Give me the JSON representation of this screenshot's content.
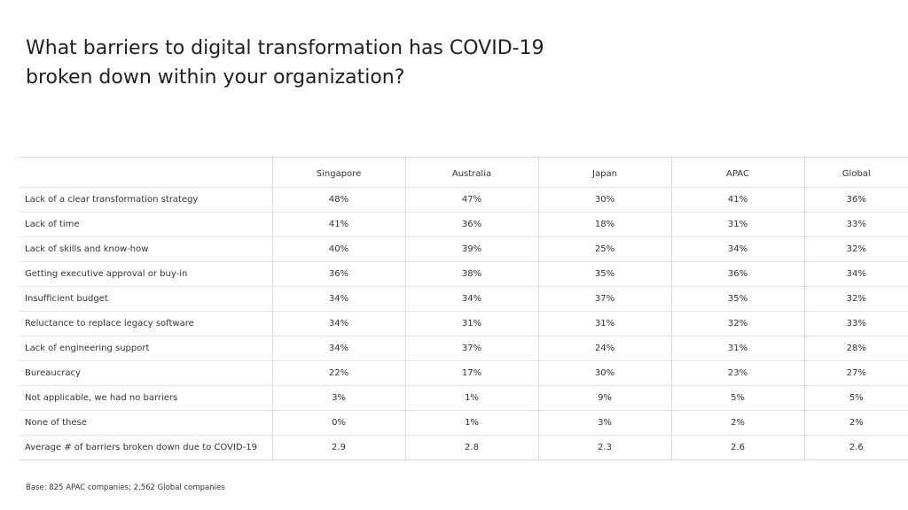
{
  "title": "What barriers to digital transformation has COVID-19 broken down within your organization?",
  "table": {
    "columns": [
      "",
      "Singapore",
      "Australia",
      "Japan",
      "APAC",
      "Global"
    ],
    "rows": [
      {
        "label": "Lack of a clear transformation strategy",
        "values": [
          "48%",
          "47%",
          "30%",
          "41%",
          "36%"
        ]
      },
      {
        "label": "Lack of time",
        "values": [
          "41%",
          "36%",
          "18%",
          "31%",
          "33%"
        ]
      },
      {
        "label": "Lack of skills and know-how",
        "values": [
          "40%",
          "39%",
          "25%",
          "34%",
          "32%"
        ]
      },
      {
        "label": "Getting executive approval or buy-in",
        "values": [
          "36%",
          "38%",
          "35%",
          "36%",
          "34%"
        ]
      },
      {
        "label": "Insufficient budget",
        "values": [
          "34%",
          "34%",
          "37%",
          "35%",
          "32%"
        ]
      },
      {
        "label": "Reluctance to replace legacy software",
        "values": [
          "34%",
          "31%",
          "31%",
          "32%",
          "33%"
        ]
      },
      {
        "label": "Lack of engineering support",
        "values": [
          "34%",
          "37%",
          "24%",
          "31%",
          "28%"
        ]
      },
      {
        "label": "Bureaucracy",
        "values": [
          "22%",
          "17%",
          "30%",
          "23%",
          "27%"
        ]
      },
      {
        "label": "Not applicable, we had no barriers",
        "values": [
          "3%",
          "1%",
          "9%",
          "5%",
          "5%"
        ]
      },
      {
        "label": "None of these",
        "values": [
          "0%",
          "1%",
          "3%",
          "2%",
          "2%"
        ]
      },
      {
        "label": "Average # of barriers broken down due to COVID-19",
        "values": [
          "2.9",
          "2.8",
          "2.3",
          "2.6",
          "2.6"
        ]
      }
    ]
  },
  "footnote": "Base: 825 APAC companies; 2,562 Global companies"
}
